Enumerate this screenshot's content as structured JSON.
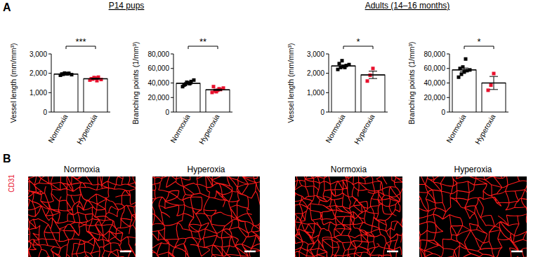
{
  "chart_data": [
    {
      "type": "bar",
      "ylabel": "Vessel length (mm/mm³)",
      "categories": [
        "Normoxia",
        "Hyperoxia"
      ],
      "values": [
        1960,
        1720
      ],
      "errors": [
        30,
        25
      ],
      "points": [
        [
          1900,
          1950,
          1980,
          2000,
          1930,
          1960,
          2010,
          1970
        ],
        [
          1650,
          1700,
          1750,
          1800,
          1680,
          1720,
          1780,
          1620
        ]
      ],
      "colors": [
        "#000000",
        "#e8112d"
      ],
      "ylim": [
        0,
        3000
      ],
      "yticks": [
        0,
        {
          "value": 1000,
          "label": "1,000"
        },
        {
          "value": 2000,
          "label": "2,000"
        },
        {
          "value": 3000,
          "label": "3,000"
        }
      ],
      "annotation": "***"
    },
    {
      "type": "bar",
      "ylabel": "Branching points (1/mm³)",
      "categories": [
        "Normoxia",
        "Hyperoxia"
      ],
      "values": [
        39500,
        30600
      ],
      "errors": [
        1100,
        900
      ],
      "points": [
        [
          35000,
          38000,
          40000,
          42000,
          44000,
          37000,
          41000,
          39000
        ],
        [
          27000,
          29000,
          30000,
          31000,
          33000,
          35000,
          28000,
          32000
        ]
      ],
      "colors": [
        "#000000",
        "#e8112d"
      ],
      "ylim": [
        0,
        80000
      ],
      "yticks": [
        0,
        {
          "value": 20000,
          "label": "20,000"
        },
        {
          "value": 40000,
          "label": "40,000"
        },
        {
          "value": 60000,
          "label": "60,000"
        },
        {
          "value": 80000,
          "label": "80,000"
        }
      ],
      "annotation": "**"
    },
    {
      "type": "bar",
      "ylabel": "Vessel length (mm/mm³)",
      "categories": [
        "Normoxia",
        "Hyperoxia"
      ],
      "values": [
        2380,
        1920
      ],
      "errors": [
        50,
        190
      ],
      "points": [
        [
          2200,
          2300,
          2350,
          2400,
          2450,
          2500,
          2650,
          2300
        ],
        [
          1600,
          1900,
          2250
        ]
      ],
      "colors": [
        "#000000",
        "#e8112d"
      ],
      "ylim": [
        0,
        3000
      ],
      "yticks": [
        0,
        {
          "value": 1000,
          "label": "1,000"
        },
        {
          "value": 2000,
          "label": "2,000"
        },
        {
          "value": 3000,
          "label": "3,000"
        }
      ],
      "annotation": "*"
    },
    {
      "type": "bar",
      "ylabel": "Branching points (1/mm³)",
      "categories": [
        "Normoxia",
        "Hyperoxia"
      ],
      "values": [
        58000,
        40000
      ],
      "errors": [
        2600,
        9000
      ],
      "points": [
        [
          48000,
          52000,
          55000,
          57000,
          58000,
          60000,
          62000,
          73000
        ],
        [
          30000,
          37000,
          53000
        ]
      ],
      "colors": [
        "#000000",
        "#e8112d"
      ],
      "ylim": [
        0,
        80000
      ],
      "yticks": [
        0,
        {
          "value": 20000,
          "label": "20,000"
        },
        {
          "value": 40000,
          "label": "40,000"
        },
        {
          "value": 60000,
          "label": "60,000"
        },
        {
          "value": 80000,
          "label": "80,000"
        }
      ],
      "annotation": "*"
    }
  ],
  "figure": {
    "panel_labels": [
      "A",
      "B"
    ],
    "group_titles": [
      "P14 pups",
      "Adults (14–16 months)"
    ],
    "images": {
      "stain": "CD31",
      "titles": [
        "Normoxia",
        "Hyperoxia",
        "Normoxia",
        "Hyperoxia"
      ]
    }
  }
}
